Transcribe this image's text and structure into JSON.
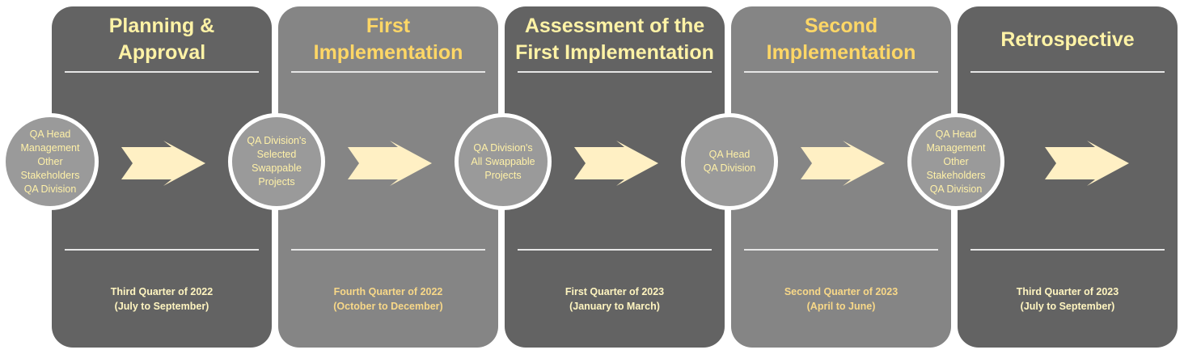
{
  "colors": {
    "panel_dark": "#636363",
    "panel_light": "#858585",
    "circle_fill": "#9a9a9a",
    "title_light": "#FFF3A6",
    "title_gold": "#FFD766",
    "arrow_fill": "#FFF0C4",
    "divider": "#e6e6e6"
  },
  "phases": [
    {
      "title": "Planning &\nApproval",
      "date": "Third Quarter of 2022\n(July to September)"
    },
    {
      "title": "First\nImplementation",
      "date": "Fourth Quarter of 2022\n(October to December)"
    },
    {
      "title": "Assessment of the\nFirst Implementation",
      "date": "First Quarter of 2023\n(January to March)"
    },
    {
      "title": "Second\nImplementation",
      "date": "Second Quarter of 2023\n(April to June)"
    },
    {
      "title": "Retrospective",
      "date": "Third Quarter of 2023\n(July to September)"
    }
  ],
  "circles": [
    {
      "text": "QA Head\nManagement\nOther\nStakeholders\nQA Division"
    },
    {
      "text": "QA Division's\nSelected\nSwappable\nProjects"
    },
    {
      "text": "QA Division's\nAll Swappable\nProjects"
    },
    {
      "text": "QA Head\nQA Division"
    },
    {
      "text": "QA Head\nManagement\nOther\nStakeholders\nQA Division"
    }
  ],
  "arrows": [
    {
      "icon": "right-arrow-icon"
    },
    {
      "icon": "right-arrow-icon"
    },
    {
      "icon": "right-arrow-icon"
    },
    {
      "icon": "right-arrow-icon"
    },
    {
      "icon": "right-arrow-icon"
    }
  ]
}
